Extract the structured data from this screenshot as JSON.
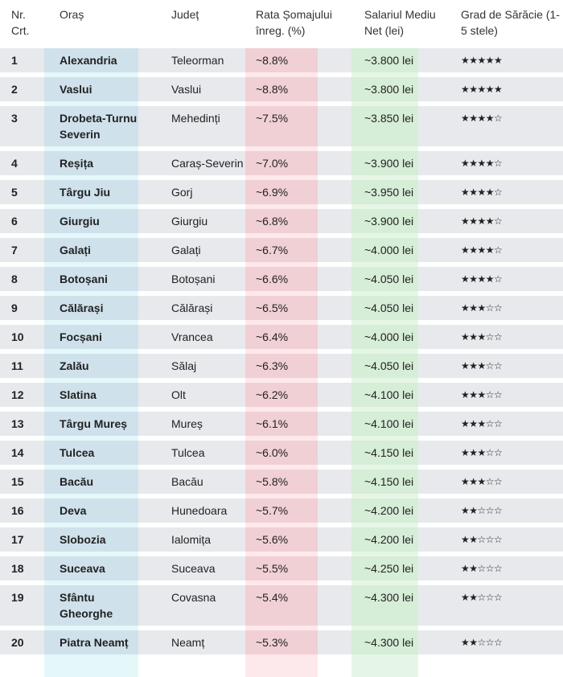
{
  "headers": {
    "nr": "Nr. Crt.",
    "oras": "Oraș",
    "judet": "Județ",
    "rata": "Rata Șomajului înreg. (%)",
    "salariu": "Salariul Mediu Net (lei)",
    "grad": "Grad de Sărăcie (1-5 stele)"
  },
  "rows": [
    {
      "nr": "1",
      "oras": "Alexandria",
      "judet": "Teleorman",
      "rata": "~8.8%",
      "salariu": "~3.800 lei",
      "stars": "★★★★★"
    },
    {
      "nr": "2",
      "oras": "Vaslui",
      "judet": "Vaslui",
      "rata": "~8.8%",
      "salariu": "~3.800 lei",
      "stars": "★★★★★"
    },
    {
      "nr": "3",
      "oras": "Drobeta-Turnu Severin",
      "judet": "Mehedinți",
      "rata": "~7.5%",
      "salariu": "~3.850 lei",
      "stars": "★★★★☆"
    },
    {
      "nr": "4",
      "oras": "Reșița",
      "judet": "Caraș-Severin",
      "rata": "~7.0%",
      "salariu": "~3.900 lei",
      "stars": "★★★★☆"
    },
    {
      "nr": "5",
      "oras": "Târgu Jiu",
      "judet": "Gorj",
      "rata": "~6.9%",
      "salariu": "~3.950 lei",
      "stars": "★★★★☆"
    },
    {
      "nr": "6",
      "oras": "Giurgiu",
      "judet": "Giurgiu",
      "rata": "~6.8%",
      "salariu": "~3.900 lei",
      "stars": "★★★★☆"
    },
    {
      "nr": "7",
      "oras": "Galați",
      "judet": "Galați",
      "rata": "~6.7%",
      "salariu": "~4.000 lei",
      "stars": "★★★★☆"
    },
    {
      "nr": "8",
      "oras": "Botoșani",
      "judet": "Botoșani",
      "rata": "~6.6%",
      "salariu": "~4.050 lei",
      "stars": "★★★★☆"
    },
    {
      "nr": "9",
      "oras": "Călărași",
      "judet": "Călărași",
      "rata": "~6.5%",
      "salariu": "~4.050 lei",
      "stars": "★★★☆☆"
    },
    {
      "nr": "10",
      "oras": "Focșani",
      "judet": "Vrancea",
      "rata": "~6.4%",
      "salariu": "~4.000 lei",
      "stars": "★★★☆☆"
    },
    {
      "nr": "11",
      "oras": "Zalău",
      "judet": "Sălaj",
      "rata": "~6.3%",
      "salariu": "~4.050 lei",
      "stars": "★★★☆☆"
    },
    {
      "nr": "12",
      "oras": "Slatina",
      "judet": "Olt",
      "rata": "~6.2%",
      "salariu": "~4.100 lei",
      "stars": "★★★☆☆"
    },
    {
      "nr": "13",
      "oras": "Târgu Mureș",
      "judet": "Mureș",
      "rata": "~6.1%",
      "salariu": "~4.100 lei",
      "stars": "★★★☆☆"
    },
    {
      "nr": "14",
      "oras": "Tulcea",
      "judet": "Tulcea",
      "rata": "~6.0%",
      "salariu": "~4.150 lei",
      "stars": "★★★☆☆"
    },
    {
      "nr": "15",
      "oras": "Bacău",
      "judet": "Bacău",
      "rata": "~5.8%",
      "salariu": "~4.150 lei",
      "stars": "★★★☆☆"
    },
    {
      "nr": "16",
      "oras": "Deva",
      "judet": "Hunedoara",
      "rata": "~5.7%",
      "salariu": "~4.200 lei",
      "stars": "★★☆☆☆"
    },
    {
      "nr": "17",
      "oras": "Slobozia",
      "judet": "Ialomița",
      "rata": "~5.6%",
      "salariu": "~4.200 lei",
      "stars": "★★☆☆☆"
    },
    {
      "nr": "18",
      "oras": "Suceava",
      "judet": "Suceava",
      "rata": "~5.5%",
      "salariu": "~4.250 lei",
      "stars": "★★☆☆☆"
    },
    {
      "nr": "19",
      "oras": "Sfântu Gheorghe",
      "judet": "Covasna",
      "rata": "~5.4%",
      "salariu": "~4.300 lei",
      "stars": "★★☆☆☆"
    },
    {
      "nr": "20",
      "oras": "Piatra Neamț",
      "judet": "Neamț",
      "rata": "~5.3%",
      "salariu": "~4.300 lei",
      "stars": "★★☆☆☆"
    }
  ]
}
